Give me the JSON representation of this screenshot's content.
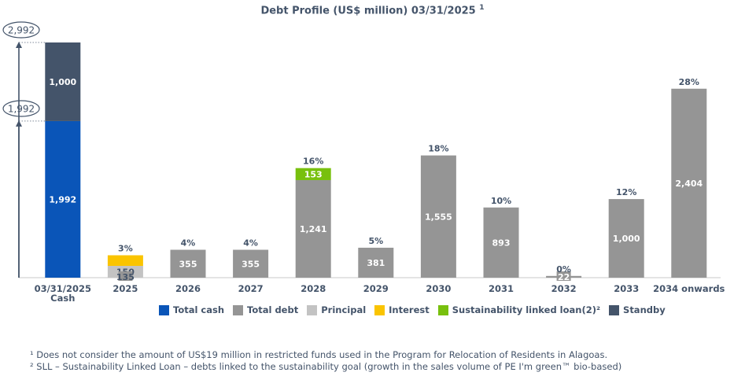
{
  "chart_data": {
    "type": "bar",
    "title": "Debt Profile (US$ million) 03/31/2025",
    "title_footnote_mark": "1",
    "categories": [
      "03/31/2025\nCash",
      "2025",
      "2026",
      "2027",
      "2028",
      "2029",
      "2030",
      "2031",
      "2032",
      "2033",
      "2034 onwards"
    ],
    "cash_bar": {
      "category": "03/31/2025\nCash",
      "segments": [
        {
          "series": "Total cash",
          "value": 1992,
          "label": "1,992"
        },
        {
          "series": "Standby",
          "value": 1000,
          "label": "1,000"
        }
      ],
      "markers": [
        {
          "value": 2992,
          "label": "2,992"
        },
        {
          "value": 1992,
          "label": "1,992"
        }
      ]
    },
    "debt_bars": [
      {
        "category": "2025",
        "pct": "3%",
        "segments": [
          {
            "series": "Principal",
            "value": 150,
            "label": "150"
          },
          {
            "series": "Interest",
            "value": 135,
            "label": "135"
          }
        ]
      },
      {
        "category": "2026",
        "pct": "4%",
        "segments": [
          {
            "series": "Total debt",
            "value": 355,
            "label": "355"
          }
        ]
      },
      {
        "category": "2027",
        "pct": "4%",
        "segments": [
          {
            "series": "Total debt",
            "value": 355,
            "label": "355"
          }
        ]
      },
      {
        "category": "2028",
        "pct": "16%",
        "segments": [
          {
            "series": "Total debt",
            "value": 1241,
            "label": "1,241"
          },
          {
            "series": "Sustainability linked loan(2)²",
            "value": 153,
            "label": "153"
          }
        ]
      },
      {
        "category": "2029",
        "pct": "5%",
        "segments": [
          {
            "series": "Total debt",
            "value": 381,
            "label": "381"
          }
        ]
      },
      {
        "category": "2030",
        "pct": "18%",
        "segments": [
          {
            "series": "Total debt",
            "value": 1555,
            "label": "1,555"
          }
        ]
      },
      {
        "category": "2031",
        "pct": "10%",
        "segments": [
          {
            "series": "Total debt",
            "value": 893,
            "label": "893"
          }
        ]
      },
      {
        "category": "2032",
        "pct": "0%",
        "segments": [
          {
            "series": "Total debt",
            "value": 22,
            "label": "22"
          }
        ]
      },
      {
        "category": "2033",
        "pct": "12%",
        "segments": [
          {
            "series": "Total debt",
            "value": 1000,
            "label": "1,000"
          }
        ]
      },
      {
        "category": "2034 onwards",
        "pct": "28%",
        "segments": [
          {
            "series": "Total debt",
            "value": 2404,
            "label": "2,404"
          }
        ]
      }
    ],
    "ylim": [
      0,
      2992
    ],
    "xlabel": "",
    "ylabel": "",
    "legend_position": "bottom",
    "legend": [
      {
        "name": "Total cash",
        "color": "#0a55b8"
      },
      {
        "name": "Total debt",
        "color": "#959595"
      },
      {
        "name": "Principal",
        "color": "#c3c3c3"
      },
      {
        "name": "Interest",
        "color": "#fac400"
      },
      {
        "name": "Sustainability linked loan(2)²",
        "color": "#78c00e"
      },
      {
        "name": "Standby",
        "color": "#44546a"
      }
    ]
  },
  "colors": {
    "text": "#44546a",
    "total_cash": "#0a55b8",
    "total_debt": "#959595",
    "principal": "#c3c3c3",
    "interest": "#fac400",
    "sll": "#78c00e",
    "standby": "#44546a"
  },
  "footnotes": [
    "¹ Does not consider the amount of US$19 million in restricted funds used in the Program for Relocation of Residents in Alagoas.",
    "² SLL – Sustainability Linked Loan – debts linked to the sustainability goal (growth in the sales volume of PE I'm green™ bio-based)"
  ]
}
